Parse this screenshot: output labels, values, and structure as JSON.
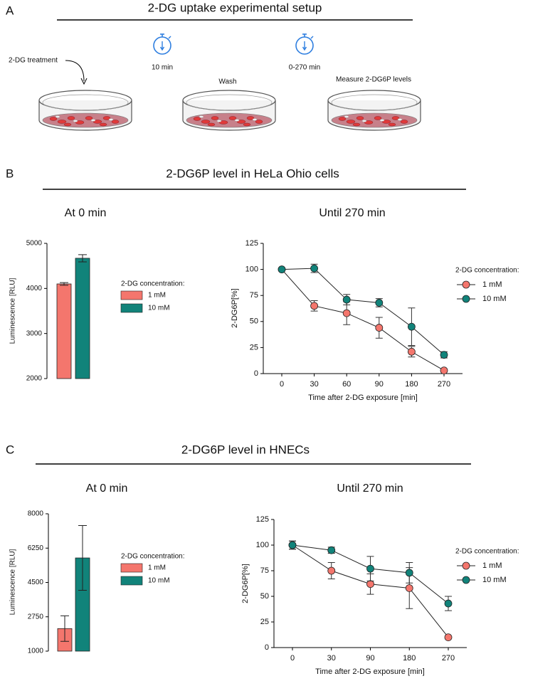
{
  "panels": {
    "A": {
      "label": "A",
      "title": "2-DG uptake experimental setup",
      "treatment": "2-DG treatment",
      "wait1": "10 min",
      "wash": "Wash",
      "wait2": "0-270 min",
      "measure": "Measure 2-DG6P levels"
    },
    "B": {
      "label": "B",
      "title": "2-DG6P level in HeLa Ohio cells"
    },
    "C": {
      "label": "C",
      "title": "2-DG6P level in HNECs"
    }
  },
  "chart_data": [
    {
      "type": "bar",
      "title": "At 0 min",
      "ylabel": "Luminescence [RLU]",
      "legend_title": "2-DG concentration:",
      "ylim": [
        2000,
        5000
      ],
      "yticks": [
        2000,
        3000,
        4000,
        5000
      ],
      "series": [
        {
          "name": "1 mM",
          "color": "#f4766d",
          "values": [
            4100
          ],
          "errors": [
            30
          ]
        },
        {
          "name": "10 mM",
          "color": "#11837a",
          "values": [
            4670
          ],
          "errors": [
            80
          ]
        }
      ]
    },
    {
      "type": "line",
      "title": "Until 270 min",
      "xlabel": "Time after 2-DG exposure [min]",
      "ylabel": "2-DG6P[%]",
      "legend_title": "2-DG concentration:",
      "categories": [
        "0",
        "30",
        "60",
        "90",
        "180",
        "270"
      ],
      "ylim": [
        0,
        125
      ],
      "yticks": [
        0,
        25,
        50,
        75,
        100,
        125
      ],
      "series": [
        {
          "name": "1 mM",
          "color": "#f4766d",
          "values": [
            100,
            65,
            58,
            44,
            21,
            3
          ],
          "errors": [
            0,
            5,
            11,
            10,
            5,
            0
          ]
        },
        {
          "name": "10 mM",
          "color": "#11837a",
          "values": [
            100,
            101,
            71,
            68,
            45,
            18
          ],
          "errors": [
            0,
            4,
            5,
            4,
            18,
            3
          ]
        }
      ]
    },
    {
      "type": "bar",
      "title": "At 0 min",
      "ylabel": "Luminescence [RLU]",
      "legend_title": "2-DG concentration:",
      "ylim": [
        1000,
        8000
      ],
      "yticks": [
        1000,
        2750,
        4500,
        6250,
        8000
      ],
      "series": [
        {
          "name": "1 mM",
          "color": "#f4766d",
          "values": [
            2150
          ],
          "errors": [
            650
          ]
        },
        {
          "name": "10 mM",
          "color": "#11837a",
          "values": [
            5750
          ],
          "errors": [
            1650
          ]
        }
      ]
    },
    {
      "type": "line",
      "title": "Until 270 min",
      "xlabel": "Time after 2-DG exposure [min]",
      "ylabel": "2-DG6P[%]",
      "legend_title": "2-DG concentration:",
      "categories": [
        "0",
        "30",
        "90",
        "180",
        "270"
      ],
      "ylim": [
        0,
        125
      ],
      "yticks": [
        0,
        25,
        50,
        75,
        100,
        125
      ],
      "series": [
        {
          "name": "1 mM",
          "color": "#f4766d",
          "values": [
            100,
            75,
            62,
            58,
            10
          ],
          "errors": [
            4,
            8,
            10,
            20,
            0
          ]
        },
        {
          "name": "10 mM",
          "color": "#11837a",
          "values": [
            100,
            95,
            77,
            73,
            43
          ],
          "errors": [
            4,
            3,
            12,
            10,
            7
          ]
        }
      ]
    }
  ]
}
